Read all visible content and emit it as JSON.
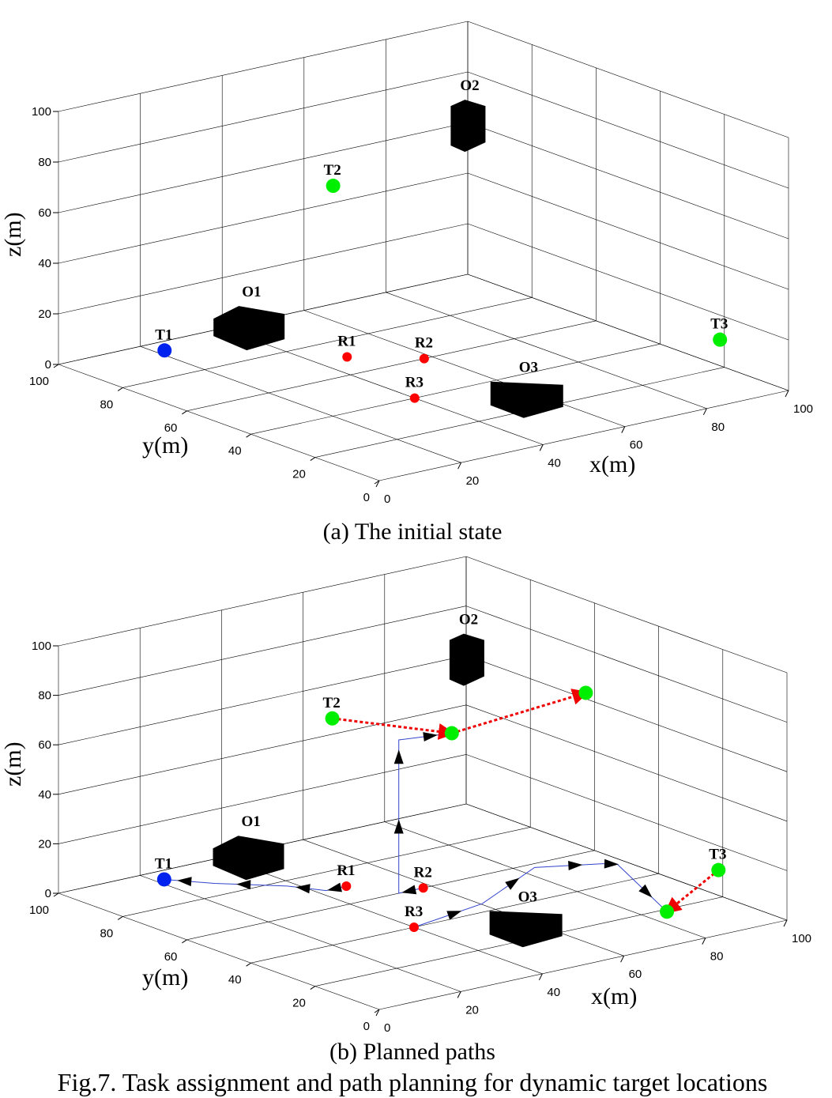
{
  "caption": "Fig.7. Task assignment and path planning for dynamic target locations",
  "colors": {
    "robot": "#ff0000",
    "target_green": "#00ee00",
    "target_blue": "#0022ee",
    "obstacle": "#000000",
    "path": "#3344cc",
    "move": "#ee0000"
  },
  "chart_data": [
    {
      "type": "scatter3d",
      "title": "(a) The initial state",
      "xlabel": "x(m)",
      "ylabel": "y(m)",
      "zlabel": "z(m)",
      "xlim": [
        0,
        100
      ],
      "ylim": [
        0,
        100
      ],
      "zlim": [
        0,
        100
      ],
      "x_ticks": [
        "0",
        "20",
        "40",
        "60",
        "80",
        "100"
      ],
      "y_ticks": [
        "0",
        "20",
        "40",
        "60",
        "80",
        "100"
      ],
      "z_ticks": [
        "0",
        "20",
        "40",
        "60",
        "80",
        "100"
      ],
      "grid": true,
      "points": [
        {
          "label": "T1",
          "kind": "target",
          "color": "#0022ee",
          "x": 22,
          "y": 95,
          "z": 0
        },
        {
          "label": "T2",
          "kind": "target",
          "color": "#00ee00",
          "x": 53,
          "y": 82,
          "z": 60
        },
        {
          "label": "T3",
          "kind": "target",
          "color": "#00ee00",
          "x": 95,
          "y": 15,
          "z": 15
        },
        {
          "label": "R1",
          "kind": "robot",
          "color": "#ff0000",
          "x": 47,
          "y": 70,
          "z": 0
        },
        {
          "label": "R2",
          "kind": "robot",
          "color": "#ff0000",
          "x": 58,
          "y": 60,
          "z": 0
        },
        {
          "label": "R3",
          "kind": "robot",
          "color": "#ff0000",
          "x": 40,
          "y": 40,
          "z": 0
        }
      ],
      "obstacles": [
        {
          "label": "O1",
          "x": 35,
          "y": 85,
          "z": 10
        },
        {
          "label": "O2",
          "x": 75,
          "y": 68,
          "z": 82
        },
        {
          "label": "O3",
          "x": 58,
          "y": 28,
          "z": 0
        }
      ]
    },
    {
      "type": "scatter3d",
      "title": "(b) Planned paths",
      "xlabel": "x(m)",
      "ylabel": "y(m)",
      "zlabel": "z(m)",
      "xlim": [
        0,
        100
      ],
      "ylim": [
        0,
        100
      ],
      "zlim": [
        0,
        100
      ],
      "x_ticks": [
        "0",
        "20",
        "40",
        "60",
        "80",
        "100"
      ],
      "y_ticks": [
        "0",
        "20",
        "40",
        "60",
        "80",
        "100"
      ],
      "z_ticks": [
        "0",
        "20",
        "40",
        "60",
        "80",
        "100"
      ],
      "grid": true,
      "points": [
        {
          "label": "T1",
          "kind": "target",
          "color": "#0022ee",
          "x": 22,
          "y": 95,
          "z": 0
        },
        {
          "label": "T2",
          "kind": "target",
          "color": "#00ee00",
          "x": 53,
          "y": 82,
          "z": 60
        },
        {
          "label": "T3",
          "kind": "target",
          "color": "#00ee00",
          "x": 95,
          "y": 15,
          "z": 15
        },
        {
          "label": "R1",
          "kind": "robot",
          "color": "#ff0000",
          "x": 47,
          "y": 70,
          "z": 0
        },
        {
          "label": "R2",
          "kind": "robot",
          "color": "#ff0000",
          "x": 58,
          "y": 60,
          "z": 0
        },
        {
          "label": "R3",
          "kind": "robot",
          "color": "#ff0000",
          "x": 40,
          "y": 40,
          "z": 0
        },
        {
          "label": "",
          "kind": "target",
          "color": "#00ee00",
          "x": 65,
          "y": 60,
          "z": 60
        },
        {
          "label": "",
          "kind": "target",
          "color": "#00ee00",
          "x": 90,
          "y": 50,
          "z": 72
        },
        {
          "label": "",
          "kind": "target",
          "color": "#00ee00",
          "x": 80,
          "y": 12,
          "z": 5
        }
      ],
      "obstacles": [
        {
          "label": "O1",
          "x": 35,
          "y": 85,
          "z": 10
        },
        {
          "label": "O2",
          "x": 75,
          "y": 68,
          "z": 82
        },
        {
          "label": "O3",
          "x": 58,
          "y": 28,
          "z": 0
        }
      ],
      "paths": [
        {
          "from": "R1",
          "points": [
            [
              47,
              70,
              0
            ],
            [
              42,
              70,
              0
            ],
            [
              38,
              77,
              0
            ],
            [
              28,
              87,
              0
            ],
            [
              22,
              95,
              0
            ]
          ]
        },
        {
          "from": "R2",
          "points": [
            [
              58,
              60,
              0
            ],
            [
              52,
              60,
              0
            ],
            [
              52,
              60,
              45
            ],
            [
              52,
              60,
              62
            ],
            [
              65,
              60,
              60
            ]
          ]
        },
        {
          "from": "R3",
          "points": [
            [
              40,
              40,
              0
            ],
            [
              52,
              34,
              8
            ],
            [
              68,
              38,
              15
            ],
            [
              80,
              32,
              15
            ],
            [
              82,
              30,
              15
            ],
            [
              80,
              12,
              5
            ]
          ]
        }
      ],
      "moves": [
        {
          "target": "T2",
          "from": [
            53,
            82,
            60
          ],
          "to": [
            65,
            60,
            60
          ]
        },
        {
          "target": "T2",
          "from": [
            65,
            60,
            60
          ],
          "to": [
            90,
            50,
            72
          ]
        },
        {
          "target": "T3",
          "from": [
            95,
            15,
            15
          ],
          "to": [
            80,
            12,
            5
          ]
        }
      ]
    }
  ]
}
